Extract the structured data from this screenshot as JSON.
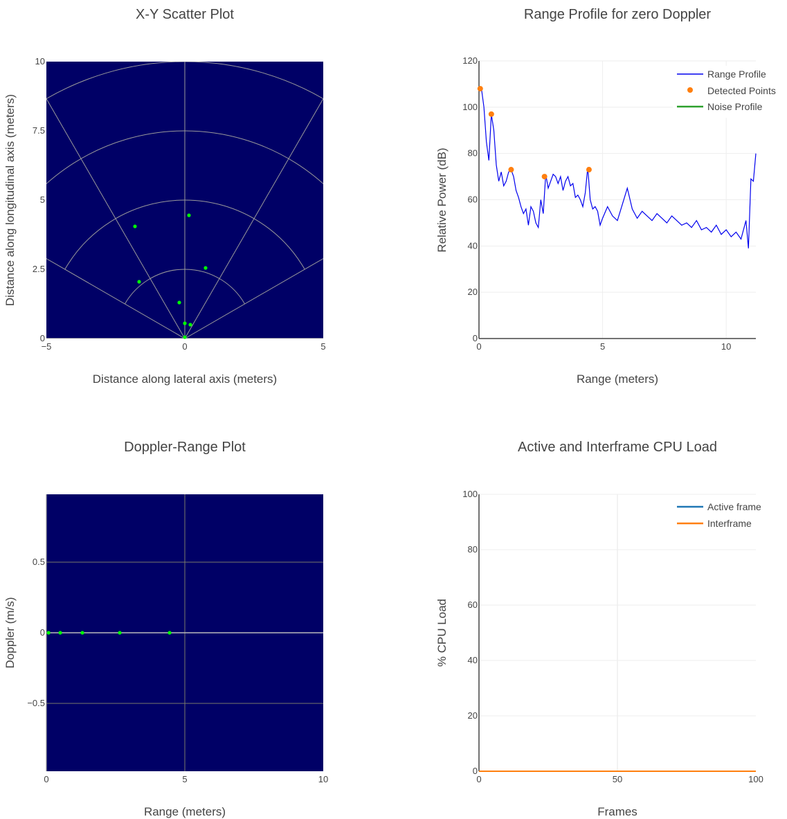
{
  "colors": {
    "plot_bg_dark": "#000066",
    "grid_light": "#9a9a9a",
    "points": "#00ff00",
    "range_profile": "#0000ee",
    "detected": "#ff7f0e",
    "noise": "#2ca02c",
    "active": "#1f77b4",
    "interframe": "#ff7f0e"
  },
  "chart_data": [
    {
      "id": "xy",
      "type": "scatter",
      "title": "X-Y Scatter Plot",
      "xlabel": "Distance along lateral axis (meters)",
      "ylabel": "Distance along longitudinal axis (meters)",
      "xlim": [
        -5,
        5
      ],
      "ylim": [
        0,
        10
      ],
      "x_ticks": [
        {
          "v": -5,
          "label": "−5"
        },
        {
          "v": 0,
          "label": "0"
        },
        {
          "v": 5,
          "label": "5"
        }
      ],
      "y_ticks": [
        {
          "v": 0,
          "label": "0"
        },
        {
          "v": 2.5,
          "label": "2.5"
        },
        {
          "v": 5,
          "label": "5"
        },
        {
          "v": 7.5,
          "label": "7.5"
        },
        {
          "v": 10,
          "label": "10"
        }
      ],
      "grid": "polar",
      "points": [
        {
          "x": 0.0,
          "y": 0.05
        },
        {
          "x": 0.0,
          "y": 0.55
        },
        {
          "x": 0.2,
          "y": 0.5
        },
        {
          "x": -0.2,
          "y": 1.3
        },
        {
          "x": -1.65,
          "y": 2.05
        },
        {
          "x": 0.75,
          "y": 2.55
        },
        {
          "x": -1.8,
          "y": 4.05
        },
        {
          "x": 0.15,
          "y": 4.45
        }
      ]
    },
    {
      "id": "range",
      "type": "line",
      "title": "Range Profile for zero Doppler",
      "xlabel": "Range (meters)",
      "ylabel": "Relative Power (dB)",
      "xlim": [
        0,
        11.2
      ],
      "ylim": [
        0,
        120
      ],
      "x_ticks": [
        {
          "v": 0,
          "label": "0"
        },
        {
          "v": 5,
          "label": "5"
        },
        {
          "v": 10,
          "label": "10"
        }
      ],
      "y_ticks": [
        {
          "v": 0,
          "label": "0"
        },
        {
          "v": 20,
          "label": "20"
        },
        {
          "v": 40,
          "label": "40"
        },
        {
          "v": 60,
          "label": "60"
        },
        {
          "v": 80,
          "label": "80"
        },
        {
          "v": 100,
          "label": "100"
        },
        {
          "v": 120,
          "label": "120"
        }
      ],
      "legend_position": "top-right",
      "series": [
        {
          "name": "Range Profile",
          "x": [
            0.0,
            0.1,
            0.2,
            0.3,
            0.4,
            0.5,
            0.6,
            0.7,
            0.8,
            0.9,
            1.0,
            1.1,
            1.2,
            1.3,
            1.4,
            1.5,
            1.6,
            1.7,
            1.8,
            1.9,
            2.0,
            2.1,
            2.2,
            2.3,
            2.4,
            2.5,
            2.6,
            2.7,
            2.8,
            2.9,
            3.0,
            3.1,
            3.2,
            3.3,
            3.4,
            3.5,
            3.6,
            3.7,
            3.8,
            3.9,
            4.0,
            4.1,
            4.2,
            4.3,
            4.4,
            4.5,
            4.6,
            4.7,
            4.8,
            4.9,
            5.0,
            5.2,
            5.4,
            5.6,
            5.8,
            6.0,
            6.2,
            6.4,
            6.6,
            6.8,
            7.0,
            7.2,
            7.4,
            7.6,
            7.8,
            8.0,
            8.2,
            8.4,
            8.6,
            8.8,
            9.0,
            9.2,
            9.4,
            9.6,
            9.8,
            10.0,
            10.2,
            10.4,
            10.6,
            10.8,
            10.9,
            11.0,
            11.1,
            11.2
          ],
          "y": [
            107,
            108,
            100,
            85,
            77,
            97,
            90,
            75,
            68,
            72,
            66,
            68,
            72,
            73,
            70,
            64,
            61,
            57,
            54,
            56,
            49,
            57,
            55,
            50,
            48,
            60,
            54,
            71,
            65,
            68,
            71,
            70,
            67,
            70,
            64,
            68,
            70,
            66,
            67,
            61,
            62,
            60,
            57,
            63,
            74,
            60,
            56,
            57,
            55,
            49,
            52,
            57,
            53,
            51,
            58,
            65,
            56,
            52,
            55,
            53,
            51,
            54,
            52,
            50,
            53,
            51,
            49,
            50,
            48,
            51,
            47,
            48,
            46,
            49,
            45,
            47,
            44,
            46,
            43,
            51,
            39,
            69,
            68,
            80
          ]
        },
        {
          "name": "Detected Points",
          "x": [
            0.05,
            0.5,
            1.3,
            2.65,
            4.45
          ],
          "y": [
            108,
            97,
            73,
            70,
            73
          ]
        },
        {
          "name": "Noise Profile",
          "x": [],
          "y": []
        }
      ]
    },
    {
      "id": "doppler",
      "type": "scatter",
      "title": "Doppler-Range Plot",
      "xlabel": "Range (meters)",
      "ylabel": "Doppler (m/s)",
      "xlim": [
        0,
        10
      ],
      "ylim": [
        -0.98,
        0.98
      ],
      "x_ticks": [
        {
          "v": 0,
          "label": "0"
        },
        {
          "v": 5,
          "label": "5"
        },
        {
          "v": 10,
          "label": "10"
        }
      ],
      "y_ticks": [
        {
          "v": 0.5,
          "label": "0.5"
        },
        {
          "v": 0,
          "label": "0"
        },
        {
          "v": -0.5,
          "label": "−0.5"
        }
      ],
      "points": [
        {
          "x": 0.08,
          "y": 0
        },
        {
          "x": 0.5,
          "y": 0
        },
        {
          "x": 1.3,
          "y": 0
        },
        {
          "x": 2.65,
          "y": 0
        },
        {
          "x": 4.45,
          "y": 0
        }
      ]
    },
    {
      "id": "cpu",
      "type": "line",
      "title": "Active and Interframe  CPU Load",
      "xlabel": "Frames",
      "ylabel": "% CPU Load",
      "xlim": [
        0,
        100
      ],
      "ylim": [
        0,
        100
      ],
      "x_ticks": [
        {
          "v": 0,
          "label": "0"
        },
        {
          "v": 50,
          "label": "50"
        },
        {
          "v": 100,
          "label": "100"
        }
      ],
      "y_ticks": [
        {
          "v": 0,
          "label": "0"
        },
        {
          "v": 20,
          "label": "20"
        },
        {
          "v": 40,
          "label": "40"
        },
        {
          "v": 60,
          "label": "60"
        },
        {
          "v": 80,
          "label": "80"
        },
        {
          "v": 100,
          "label": "100"
        }
      ],
      "legend_position": "top-right",
      "series": [
        {
          "name": "Active frame",
          "x": [
            0,
            100
          ],
          "y": [
            0,
            0
          ]
        },
        {
          "name": "Interframe",
          "x": [
            0,
            100
          ],
          "y": [
            0,
            0
          ]
        }
      ]
    }
  ]
}
